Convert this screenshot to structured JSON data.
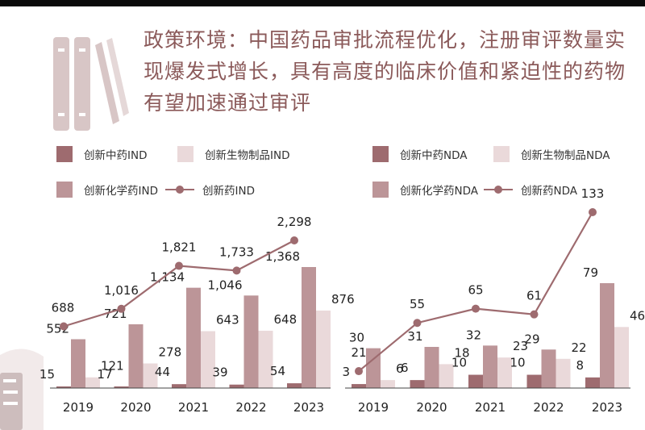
{
  "title": "政策环境：中国药品审批流程优化，注册审评数量实现爆发式增长，具有高度的临床价值和紧迫性的药物有望加速通过审评",
  "colors": {
    "tcm": "#9e6b6f",
    "bio": "#ead9da",
    "chem": "#bc9598",
    "line": "#9e6b6f",
    "title": "#8b5a5a",
    "icon": "#cdbdbd"
  },
  "icons": [
    "book-icon",
    "clipboard-icon"
  ],
  "chart_data": [
    {
      "type": "bar",
      "title": "",
      "categories": [
        "2019",
        "2020",
        "2021",
        "2022",
        "2023"
      ],
      "series": [
        {
          "name": "创新中药IND",
          "values": [
            15,
            17,
            44,
            39,
            54
          ]
        },
        {
          "name": "创新化学药IND",
          "values": [
            552,
            721,
            1134,
            1046,
            1368
          ]
        },
        {
          "name": "创新生物制品IND",
          "values": [
            121,
            278,
            643,
            648,
            876
          ]
        },
        {
          "name": "创新药IND",
          "type": "line",
          "values": [
            688,
            1016,
            1821,
            1733,
            2298
          ]
        }
      ],
      "value_labels": {
        "tcm": [
          "15",
          "17",
          "44",
          "39",
          "54"
        ],
        "chem": [
          "552",
          "721",
          "1,134",
          "1,046",
          "1,368"
        ],
        "bio": [
          "121",
          "278",
          "643",
          "648",
          "876"
        ],
        "line": [
          "688",
          "1,016",
          "1,821",
          "1,733",
          "2,298"
        ]
      },
      "legend_order": [
        "创新中药IND",
        "创新生物制品IND",
        "创新化学药IND",
        "创新药IND"
      ],
      "legend_position": "top",
      "grid": false
    },
    {
      "type": "bar",
      "title": "",
      "categories": [
        "2019",
        "2020",
        "2021",
        "2022",
        "2023"
      ],
      "series": [
        {
          "name": "创新中药NDA",
          "values": [
            3,
            6,
            10,
            10,
            8
          ]
        },
        {
          "name": "创新化学药NDA",
          "values": [
            30,
            31,
            32,
            29,
            79
          ]
        },
        {
          "name": "创新生物制品NDA",
          "values": [
            6,
            18,
            23,
            22,
            46
          ]
        },
        {
          "name": "创新药NDA",
          "type": "line",
          "values": [
            21,
            55,
            65,
            61,
            133
          ]
        }
      ],
      "value_labels": {
        "tcm": [
          "3",
          "6",
          "10",
          "10",
          "8"
        ],
        "chem": [
          "30",
          "31",
          "32",
          "29",
          "79"
        ],
        "bio": [
          "6",
          "18",
          "23",
          "22",
          "46"
        ],
        "line": [
          "21",
          "55",
          "65",
          "61",
          "133"
        ]
      },
      "legend_order": [
        "创新中药NDA",
        "创新生物制品NDA",
        "创新化学药NDA",
        "创新药NDA"
      ],
      "legend_position": "top",
      "grid": false
    }
  ]
}
